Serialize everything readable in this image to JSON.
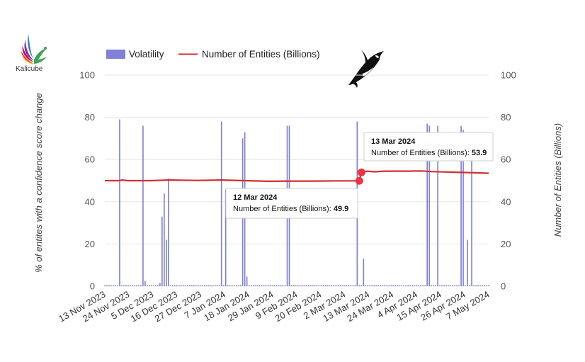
{
  "brand": {
    "logo_text": "Kalicube"
  },
  "colors": {
    "bar": "#8080d6",
    "line": "#d32f2f",
    "grid": "#e6e6e6",
    "point": "#f0333f"
  },
  "chart_data": {
    "type": "bar+line",
    "title": "",
    "legend": {
      "position": "top",
      "items": [
        "Volatility",
        "Number of Entities (Billions)"
      ]
    },
    "y_left": {
      "label": "% of entites with a confidence score change",
      "range": [
        0,
        100
      ],
      "ticks": [
        0,
        20,
        40,
        60,
        80,
        100
      ]
    },
    "y_right": {
      "label": "Number of Entities (Billions)",
      "range": [
        0,
        100
      ],
      "ticks": [
        0,
        20,
        40,
        60,
        80,
        100
      ]
    },
    "x_tick_labels": [
      "13 Nov 2023",
      "24 Nov 2023",
      "5 Dec 2023",
      "16 Dec 2023",
      "27 Dec 2023",
      "7 Jan 2024",
      "18 Jan 2024",
      "29 Jan 2024",
      "9 Feb 2024",
      "20 Feb 2024",
      "2 Mar 2024",
      "13 Mar 2024",
      "24 Mar 2024",
      "4 Apr 2024",
      "15 Apr 2024",
      "26 Apr 2024",
      "7 May 2024"
    ],
    "x_range": [
      "2023-11-13",
      "2024-05-12"
    ],
    "grid": true,
    "series": [
      {
        "name": "Volatility",
        "type": "bar",
        "axis": "left",
        "baseline_value": 0.5,
        "spikes": [
          {
            "date": "2023-11-20",
            "value": 79
          },
          {
            "date": "2023-12-01",
            "value": 76
          },
          {
            "date": "2023-12-02",
            "value": 2.5
          },
          {
            "date": "2023-12-09",
            "value": 1.5
          },
          {
            "date": "2023-12-10",
            "value": 33
          },
          {
            "date": "2023-12-11",
            "value": 44
          },
          {
            "date": "2023-12-12",
            "value": 22
          },
          {
            "date": "2023-12-13",
            "value": 51
          },
          {
            "date": "2024-01-07",
            "value": 78
          },
          {
            "date": "2024-01-09",
            "value": 46
          },
          {
            "date": "2024-01-17",
            "value": 70
          },
          {
            "date": "2024-01-18",
            "value": 73
          },
          {
            "date": "2024-01-19",
            "value": 4.5
          },
          {
            "date": "2024-02-07",
            "value": 76
          },
          {
            "date": "2024-02-08",
            "value": 76
          },
          {
            "date": "2024-03-11",
            "value": 78
          },
          {
            "date": "2024-03-14",
            "value": 13
          },
          {
            "date": "2024-04-13",
            "value": 77
          },
          {
            "date": "2024-04-14",
            "value": 76
          },
          {
            "date": "2024-04-18",
            "value": 76
          },
          {
            "date": "2024-04-29",
            "value": 76
          },
          {
            "date": "2024-04-30",
            "value": 74
          },
          {
            "date": "2024-05-02",
            "value": 22
          },
          {
            "date": "2024-05-04",
            "value": 70
          }
        ]
      },
      {
        "name": "Number of Entities (Billions)",
        "type": "line",
        "axis": "right",
        "points": [
          {
            "date": "2023-11-13",
            "value": 50.0
          },
          {
            "date": "2023-11-20",
            "value": 50.0
          },
          {
            "date": "2023-11-21",
            "value": 50.3
          },
          {
            "date": "2023-11-24",
            "value": 50.0
          },
          {
            "date": "2023-12-05",
            "value": 50.0
          },
          {
            "date": "2023-12-13",
            "value": 50.3
          },
          {
            "date": "2023-12-27",
            "value": 50.1
          },
          {
            "date": "2024-01-07",
            "value": 50.3
          },
          {
            "date": "2024-01-18",
            "value": 50.0
          },
          {
            "date": "2024-01-29",
            "value": 49.7
          },
          {
            "date": "2024-02-09",
            "value": 49.8
          },
          {
            "date": "2024-02-20",
            "value": 49.8
          },
          {
            "date": "2024-03-02",
            "value": 49.9
          },
          {
            "date": "2024-03-12",
            "value": 49.9
          },
          {
            "date": "2024-03-13",
            "value": 53.9
          },
          {
            "date": "2024-03-16",
            "value": 54.5
          },
          {
            "date": "2024-03-19",
            "value": 54.2
          },
          {
            "date": "2024-03-24",
            "value": 54.5
          },
          {
            "date": "2024-04-04",
            "value": 54.5
          },
          {
            "date": "2024-04-10",
            "value": 54.6
          },
          {
            "date": "2024-04-15",
            "value": 54.3
          },
          {
            "date": "2024-04-26",
            "value": 54.0
          },
          {
            "date": "2024-05-07",
            "value": 53.7
          },
          {
            "date": "2024-05-12",
            "value": 53.5
          }
        ]
      }
    ],
    "tooltips": [
      {
        "date_label": "12 Mar 2024",
        "series_label": "Number of Entities (Billions): ",
        "value_label": "49.9",
        "date": "2024-03-12",
        "value": 49.9
      },
      {
        "date_label": "13 Mar 2024",
        "series_label": "Number of Entities (Billions): ",
        "value_label": "53.9",
        "date": "2024-03-13",
        "value": 53.9
      }
    ]
  }
}
